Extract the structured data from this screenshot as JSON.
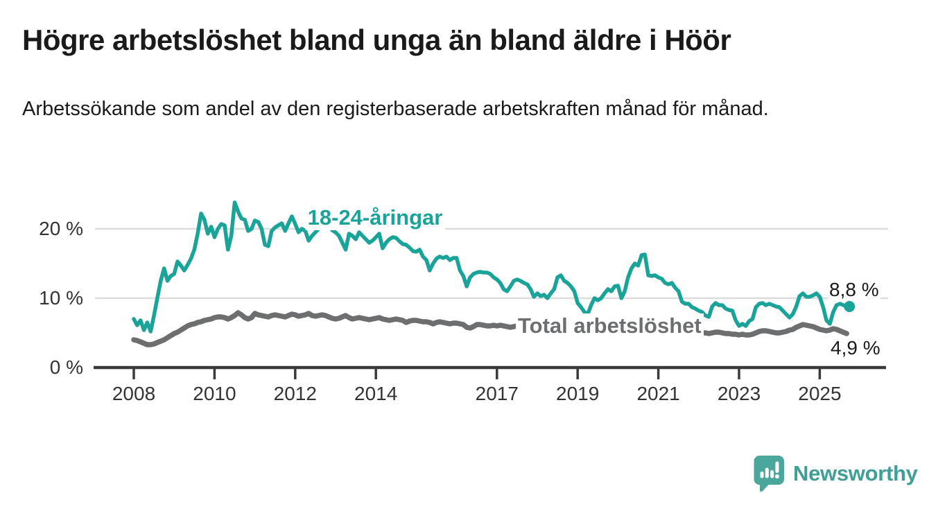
{
  "title": "Högre arbetslöshet bland unga än bland äldre i Höör",
  "subtitle": "Arbetssökande som andel av den registerbaserade arbetskraften månad för månad.",
  "colors": {
    "young_line": "#1aa398",
    "total_line": "#6d6e70",
    "grid": "#dcdcdc",
    "axis": "#3a3a3a",
    "tick_text": "#333333",
    "title_text": "#1a1a1a",
    "logo": "#4ba69c",
    "logo_text": "#3f9f95"
  },
  "series_labels": {
    "young": "18-24-åringar",
    "total": "Total arbetslöshet"
  },
  "end_labels": {
    "young": "8,8 %",
    "total": "4,9 %"
  },
  "logo": {
    "text": "Newsworthy",
    "icon": "newsworthy-speech-bubble-barchart-icon"
  },
  "chart_data": {
    "type": "line",
    "title": "Högre arbetslöshet bland unga än bland äldre i Höör",
    "subtitle": "Arbetssökande som andel av den registerbaserade arbetskraften månad för månad.",
    "unit": "%",
    "x_start": "2008-01",
    "x_end": "2025-09",
    "x_step": "month",
    "grid": "horizontal",
    "ylim": [
      0,
      25
    ],
    "yticks": [
      {
        "value": 0,
        "label": "0 %"
      },
      {
        "value": 10,
        "label": "10 %"
      },
      {
        "value": 20,
        "label": "20 %"
      }
    ],
    "xticks": [
      {
        "value": 2008,
        "label": "2008"
      },
      {
        "value": 2010,
        "label": "2010"
      },
      {
        "value": 2012,
        "label": "2012"
      },
      {
        "value": 2014,
        "label": "2014"
      },
      {
        "value": 2017,
        "label": "2017"
      },
      {
        "value": 2019,
        "label": "2019"
      },
      {
        "value": 2021,
        "label": "2021"
      },
      {
        "value": 2023,
        "label": "2023"
      },
      {
        "value": 2025,
        "label": "2025"
      }
    ],
    "series": [
      {
        "name": "18-24-åringar",
        "color": "#1aa398",
        "last_value_label": "8,8 %",
        "values": [
          7.0,
          6.1,
          6.8,
          5.4,
          6.5,
          5.2,
          7.5,
          10.0,
          12.5,
          14.3,
          12.5,
          13.2,
          13.5,
          15.3,
          14.7,
          14.0,
          14.8,
          15.7,
          17.0,
          19.3,
          22.2,
          21.3,
          19.3,
          20.3,
          18.8,
          20.0,
          20.7,
          20.5,
          17.0,
          19.0,
          23.8,
          22.5,
          21.5,
          21.3,
          19.7,
          20.0,
          21.2,
          21.0,
          20.0,
          17.7,
          17.5,
          19.7,
          20.2,
          20.5,
          20.8,
          19.7,
          20.8,
          21.8,
          20.7,
          19.5,
          20.0,
          19.7,
          18.3,
          19.0,
          19.5,
          20.0,
          21.0,
          21.9,
          20.5,
          19.8,
          19.5,
          19.0,
          18.0,
          17.0,
          19.3,
          19.0,
          18.5,
          19.5,
          19.0,
          18.5,
          18.0,
          18.3,
          18.8,
          19.3,
          17.2,
          18.0,
          18.5,
          18.8,
          18.7,
          18.2,
          17.8,
          17.7,
          17.3,
          16.8,
          16.7,
          17.0,
          16.0,
          15.5,
          14.0,
          15.0,
          15.7,
          16.0,
          15.8,
          16.0,
          15.5,
          15.8,
          15.8,
          14.0,
          13.2,
          11.7,
          13.0,
          13.5,
          13.7,
          13.8,
          13.7,
          13.7,
          13.5,
          13.0,
          12.7,
          12.2,
          11.3,
          11.0,
          11.7,
          12.5,
          12.7,
          12.5,
          12.2,
          12.0,
          11.3,
          10.2,
          10.7,
          10.3,
          10.5,
          10.0,
          10.7,
          11.3,
          13.0,
          13.3,
          12.5,
          12.2,
          11.7,
          11.0,
          9.3,
          8.7,
          8.0,
          7.7,
          9.0,
          10.0,
          9.7,
          10.0,
          10.7,
          11.3,
          11.0,
          11.7,
          11.8,
          10.0,
          11.0,
          13.0,
          14.3,
          15.0,
          14.7,
          16.2,
          16.3,
          13.3,
          13.2,
          13.3,
          13.0,
          12.8,
          12.2,
          12.0,
          12.2,
          11.5,
          11.0,
          9.5,
          9.2,
          9.2,
          8.7,
          8.5,
          8.2,
          8.0,
          7.5,
          7.3,
          8.8,
          9.3,
          9.0,
          9.0,
          8.5,
          8.3,
          8.2,
          6.8,
          6.0,
          6.3,
          6.0,
          6.7,
          7.0,
          8.7,
          9.2,
          9.3,
          9.0,
          9.2,
          9.0,
          8.8,
          8.7,
          8.2,
          7.7,
          7.2,
          7.7,
          8.8,
          10.3,
          10.7,
          10.2,
          10.2,
          10.4,
          10.7,
          10.2,
          8.7,
          6.8,
          6.3,
          8.0,
          9.0,
          9.2,
          9.0,
          8.8
        ]
      },
      {
        "name": "Total arbetslöshet",
        "color": "#6d6e70",
        "last_value_label": "4,9 %",
        "values": [
          4.0,
          3.9,
          3.7,
          3.5,
          3.3,
          3.3,
          3.4,
          3.6,
          3.8,
          4.0,
          4.3,
          4.6,
          4.9,
          5.1,
          5.4,
          5.7,
          6.0,
          6.2,
          6.3,
          6.5,
          6.6,
          6.8,
          6.9,
          7.0,
          7.2,
          7.3,
          7.3,
          7.2,
          7.0,
          7.2,
          7.5,
          7.9,
          7.6,
          7.2,
          7.0,
          7.2,
          7.8,
          7.6,
          7.5,
          7.4,
          7.3,
          7.5,
          7.6,
          7.5,
          7.4,
          7.3,
          7.5,
          7.7,
          7.6,
          7.4,
          7.5,
          7.6,
          7.8,
          7.5,
          7.4,
          7.5,
          7.6,
          7.5,
          7.3,
          7.1,
          7.0,
          7.1,
          7.3,
          7.5,
          7.2,
          7.0,
          7.1,
          7.2,
          7.1,
          7.0,
          6.9,
          7.0,
          7.1,
          7.2,
          7.0,
          6.9,
          6.8,
          6.9,
          7.0,
          6.9,
          6.8,
          6.5,
          6.7,
          6.8,
          6.8,
          6.7,
          6.6,
          6.6,
          6.5,
          6.3,
          6.5,
          6.6,
          6.5,
          6.4,
          6.3,
          6.4,
          6.4,
          6.3,
          6.2,
          5.8,
          5.7,
          5.9,
          6.2,
          6.2,
          6.1,
          6.0,
          6.0,
          6.1,
          6.0,
          6.1,
          6.0,
          5.9,
          5.8,
          5.9,
          6.0,
          6.0,
          5.9,
          5.9,
          5.8,
          5.8,
          5.8,
          5.7,
          5.7,
          5.6,
          5.6,
          5.7,
          5.8,
          5.8,
          5.7,
          5.6,
          5.5,
          5.5,
          5.4,
          5.3,
          5.3,
          5.2,
          5.3,
          5.4,
          5.5,
          5.5,
          5.6,
          5.6,
          5.7,
          5.7,
          5.7,
          5.6,
          5.8,
          6.2,
          6.5,
          6.7,
          6.8,
          6.9,
          6.8,
          6.6,
          6.5,
          6.4,
          6.3,
          6.2,
          6.0,
          5.9,
          5.8,
          5.7,
          5.6,
          5.4,
          5.3,
          5.2,
          5.1,
          5.1,
          5.1,
          5.0,
          5.0,
          4.9,
          5.0,
          5.1,
          5.1,
          5.0,
          4.9,
          4.9,
          4.8,
          4.8,
          4.7,
          4.8,
          4.7,
          4.7,
          4.8,
          5.0,
          5.2,
          5.3,
          5.3,
          5.2,
          5.1,
          5.0,
          5.0,
          5.1,
          5.2,
          5.4,
          5.5,
          5.8,
          6.0,
          6.2,
          6.1,
          6.0,
          5.9,
          5.7,
          5.5,
          5.4,
          5.3,
          5.4,
          5.6,
          5.5,
          5.3,
          5.1,
          4.9
        ]
      }
    ]
  }
}
